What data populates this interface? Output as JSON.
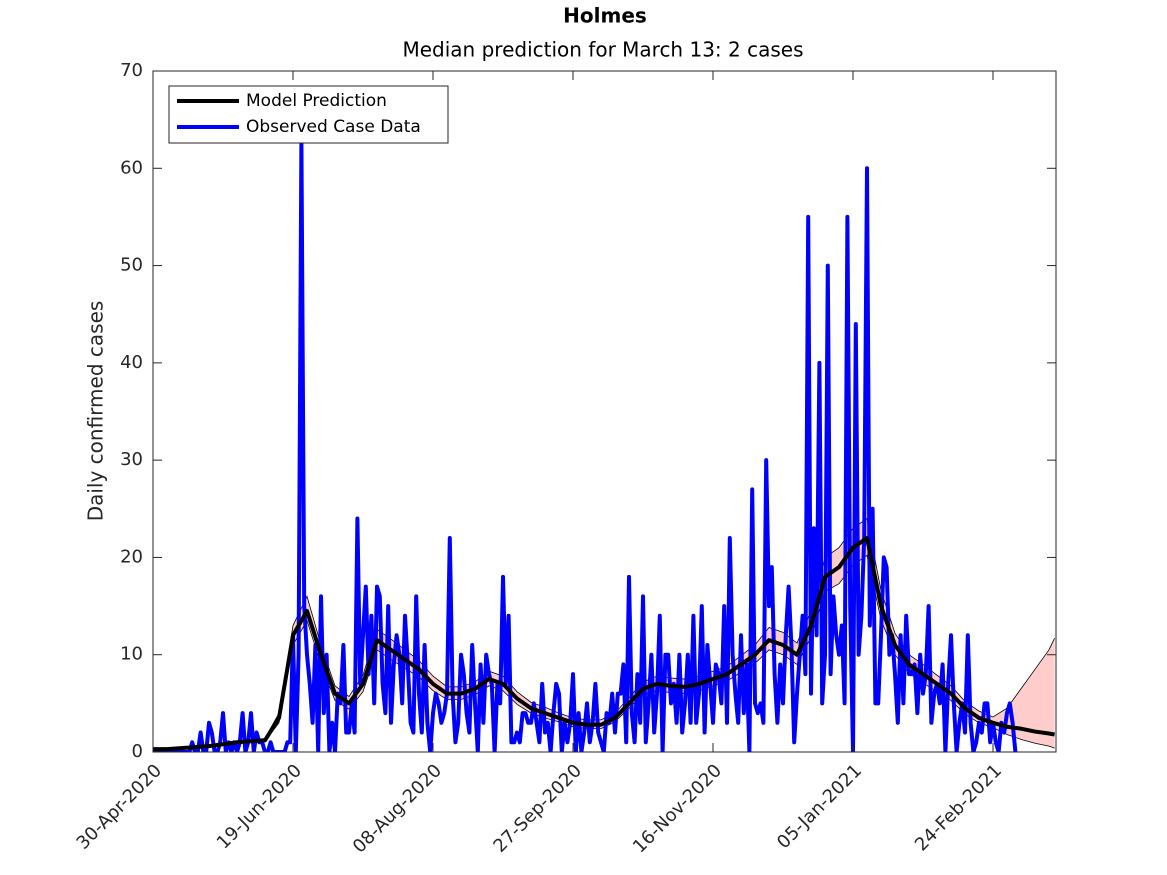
{
  "chart_data": {
    "type": "line",
    "title": "Holmes",
    "subtitle": "Median prediction for March 13: 2 cases",
    "y_label": "Daily confirmed cases",
    "xlim": [
      0,
      322.5
    ],
    "xticks": [
      {
        "value": 0,
        "label": "30-Apr-2020"
      },
      {
        "value": 50,
        "label": "19-Jun-2020"
      },
      {
        "value": 100,
        "label": "08-Aug-2020"
      },
      {
        "value": 150,
        "label": "27-Sep-2020"
      },
      {
        "value": 200,
        "label": "16-Nov-2020"
      },
      {
        "value": 250,
        "label": "05-Jan-2021"
      },
      {
        "value": 300,
        "label": "24-Feb-2021"
      }
    ],
    "ylim": [
      0,
      70
    ],
    "yticks": [
      0,
      10,
      20,
      30,
      40,
      50,
      60,
      70
    ],
    "legend": "upper left",
    "series": [
      {
        "name": "Model Prediction",
        "color": "#000000",
        "band_color": "#ffcccc",
        "x": [
          0,
          5,
          10,
          15,
          20,
          25,
          30,
          35,
          40,
          45,
          50,
          55,
          60,
          65,
          70,
          75,
          80,
          85,
          90,
          95,
          100,
          105,
          110,
          115,
          120,
          125,
          130,
          135,
          140,
          145,
          150,
          155,
          160,
          165,
          170,
          175,
          180,
          185,
          190,
          195,
          200,
          205,
          210,
          215,
          220,
          225,
          230,
          235,
          240,
          245,
          250,
          255,
          260,
          265,
          270,
          275,
          280,
          285,
          290,
          295,
          300,
          305,
          310,
          315,
          320,
          322
        ],
        "values": [
          0.3,
          0.3,
          0.4,
          0.5,
          0.6,
          0.8,
          1,
          1.1,
          1.2,
          3.5,
          12,
          14.5,
          10,
          6,
          5,
          7,
          11.5,
          10.5,
          9.5,
          8.5,
          7,
          6,
          6,
          6.5,
          7.5,
          7,
          5.5,
          4.5,
          4,
          3.5,
          3,
          2.8,
          2.8,
          3.5,
          5,
          6.5,
          7,
          6.8,
          6.7,
          7,
          7.5,
          8,
          9,
          10,
          11.5,
          11,
          10,
          13,
          18,
          19,
          21,
          22,
          15,
          11,
          9,
          8,
          7,
          6,
          4.5,
          3.5,
          3,
          2.6,
          2.4,
          2.1,
          1.9,
          1.8
        ],
        "lower": [
          0.2,
          0.2,
          0.3,
          0.4,
          0.5,
          0.7,
          0.9,
          1,
          1.1,
          3,
          11,
          13.5,
          9,
          5.3,
          4.4,
          6.2,
          10.5,
          9.5,
          8.6,
          7.7,
          6.3,
          5.4,
          5.4,
          5.9,
          6.8,
          6.3,
          4.9,
          4,
          3.5,
          3.1,
          2.6,
          2.4,
          2.4,
          3.1,
          4.5,
          5.9,
          6.3,
          6.1,
          6,
          6.3,
          6.8,
          7.3,
          8.2,
          9.1,
          10.5,
          10,
          9,
          11.8,
          16.5,
          17.3,
          19.2,
          20.2,
          13.6,
          10,
          8.1,
          7.1,
          6.2,
          5.3,
          3.9,
          3,
          2.5,
          1.8,
          1.3,
          0.9,
          0.6,
          0.4
        ],
        "upper": [
          0.4,
          0.4,
          0.5,
          0.6,
          0.7,
          0.9,
          1.1,
          1.2,
          1.4,
          4,
          13,
          16,
          11,
          6.8,
          5.7,
          7.9,
          12.6,
          11.6,
          10.5,
          9.4,
          7.8,
          6.7,
          6.7,
          7.2,
          8.3,
          7.8,
          6.2,
          5.1,
          4.6,
          4,
          3.5,
          3.3,
          3.3,
          4,
          5.6,
          7.2,
          7.8,
          7.6,
          7.5,
          7.8,
          8.3,
          8.8,
          9.9,
          11,
          12.8,
          12.3,
          11.2,
          14.5,
          20,
          21,
          23,
          24,
          16.6,
          12.2,
          10,
          9,
          7.9,
          6.8,
          5.2,
          4.2,
          3.6,
          4.5,
          6.5,
          8.5,
          10.5,
          11.7
        ]
      },
      {
        "name": "Observed Case Data",
        "color": "#0000ff",
        "x": [
          0,
          1,
          2,
          3,
          4,
          5,
          6,
          7,
          8,
          9,
          10,
          11,
          12,
          13,
          14,
          15,
          16,
          17,
          18,
          19,
          20,
          21,
          22,
          23,
          24,
          25,
          26,
          27,
          28,
          29,
          30,
          31,
          32,
          33,
          34,
          35,
          36,
          37,
          38,
          39,
          40,
          41,
          42,
          43,
          44,
          45,
          46,
          47,
          48,
          49,
          50,
          51,
          52,
          53,
          54,
          55,
          56,
          57,
          58,
          59,
          60,
          61,
          62,
          63,
          64,
          65,
          66,
          67,
          68,
          69,
          70,
          71,
          72,
          73,
          74,
          75,
          76,
          77,
          78,
          79,
          80,
          81,
          82,
          83,
          84,
          85,
          86,
          87,
          88,
          89,
          90,
          91,
          92,
          93,
          94,
          95,
          96,
          97,
          98,
          99,
          100,
          101,
          102,
          103,
          104,
          105,
          106,
          107,
          108,
          109,
          110,
          111,
          112,
          113,
          114,
          115,
          116,
          117,
          118,
          119,
          120,
          121,
          122,
          123,
          124,
          125,
          126,
          127,
          128,
          129,
          130,
          131,
          132,
          133,
          134,
          135,
          136,
          137,
          138,
          139,
          140,
          141,
          142,
          143,
          144,
          145,
          146,
          147,
          148,
          149,
          150,
          151,
          152,
          153,
          154,
          155,
          156,
          157,
          158,
          159,
          160,
          161,
          162,
          163,
          164,
          165,
          166,
          167,
          168,
          169,
          170,
          171,
          172,
          173,
          174,
          175,
          176,
          177,
          178,
          179,
          180,
          181,
          182,
          183,
          184,
          185,
          186,
          187,
          188,
          189,
          190,
          191,
          192,
          193,
          194,
          195,
          196,
          197,
          198,
          199,
          200,
          201,
          202,
          203,
          204,
          205,
          206,
          207,
          208,
          209,
          210,
          211,
          212,
          213,
          214,
          215,
          216,
          217,
          218,
          219,
          220,
          221,
          222,
          223,
          224,
          225,
          226,
          227,
          228,
          229,
          230,
          231,
          232,
          233,
          234,
          235,
          236,
          237,
          238,
          239,
          240,
          241,
          242,
          243,
          244,
          245,
          246,
          247,
          248,
          249,
          250,
          251,
          252,
          253,
          254,
          255,
          256,
          257,
          258,
          259,
          260,
          261,
          262,
          263,
          264,
          265,
          266,
          267,
          268,
          269,
          270,
          271,
          272,
          273,
          274,
          275,
          276,
          277,
          278,
          279,
          280,
          281,
          282,
          283,
          284,
          285,
          286,
          287,
          288,
          289,
          290,
          291,
          292,
          293,
          294,
          295,
          296,
          297,
          298,
          299,
          300,
          301,
          302,
          303,
          304,
          305,
          306,
          307,
          308
        ],
        "values": [
          0,
          0,
          0,
          0,
          0,
          0,
          0,
          0,
          0,
          0,
          0,
          0,
          0,
          0,
          1,
          0,
          0,
          2,
          0,
          0,
          3,
          2,
          0,
          0,
          1,
          4,
          0,
          1,
          0,
          1,
          0,
          1,
          4,
          0,
          1,
          4,
          0,
          2,
          1,
          1,
          0,
          0,
          1,
          0,
          0,
          0,
          0,
          0,
          1,
          1,
          12,
          0,
          10,
          63,
          15,
          10,
          7,
          3,
          11,
          0,
          16,
          4,
          10,
          0,
          3,
          0,
          6,
          5,
          11,
          2,
          2,
          5,
          2,
          24,
          7,
          12,
          17,
          8,
          14,
          5,
          17,
          16,
          7,
          4,
          15,
          3,
          9,
          12,
          10,
          5,
          14,
          9,
          3,
          2,
          16,
          6,
          2,
          11,
          3,
          0,
          4,
          6,
          5,
          3,
          4,
          6,
          22,
          6,
          1,
          3,
          10,
          8,
          4,
          2,
          11,
          5,
          0,
          9,
          3,
          10,
          8,
          7,
          0,
          7,
          5,
          18,
          7,
          14,
          1,
          1,
          2,
          1,
          4,
          4,
          3,
          3,
          5,
          3,
          1,
          7,
          2,
          3,
          0,
          4,
          7,
          6,
          0,
          3,
          1,
          3,
          8,
          0,
          4,
          0,
          2,
          5,
          1,
          3,
          7,
          2,
          1,
          0,
          4,
          3,
          6,
          2,
          6,
          6,
          9,
          1,
          18,
          4,
          1,
          8,
          3,
          16,
          1,
          5,
          10,
          2,
          6,
          14,
          0,
          10,
          10,
          5,
          7,
          3,
          10,
          2,
          5,
          10,
          3,
          14,
          3,
          6,
          15,
          2,
          11,
          7,
          3,
          9,
          8,
          5,
          15,
          3,
          22,
          10,
          6,
          3,
          12,
          4,
          9,
          0,
          27,
          5,
          4,
          5,
          3,
          30,
          15,
          19,
          8,
          3,
          9,
          5,
          12,
          17,
          11,
          1,
          6,
          10,
          14,
          8,
          55,
          6,
          23,
          12,
          40,
          5,
          10,
          50,
          8,
          16,
          12,
          10,
          13,
          5,
          55,
          15,
          0,
          44,
          10,
          14,
          22,
          60,
          13,
          25,
          5,
          5,
          12,
          20,
          19,
          10,
          12,
          8,
          3,
          12,
          5,
          14,
          8,
          8,
          9,
          4,
          10,
          6,
          8,
          15,
          3,
          6,
          7,
          5,
          9,
          0,
          7,
          12,
          5,
          0,
          3,
          5,
          2,
          12,
          3,
          0,
          1,
          3,
          2,
          5,
          5,
          1,
          3,
          1,
          0,
          3,
          2,
          4,
          5,
          3,
          0
        ]
      }
    ]
  }
}
